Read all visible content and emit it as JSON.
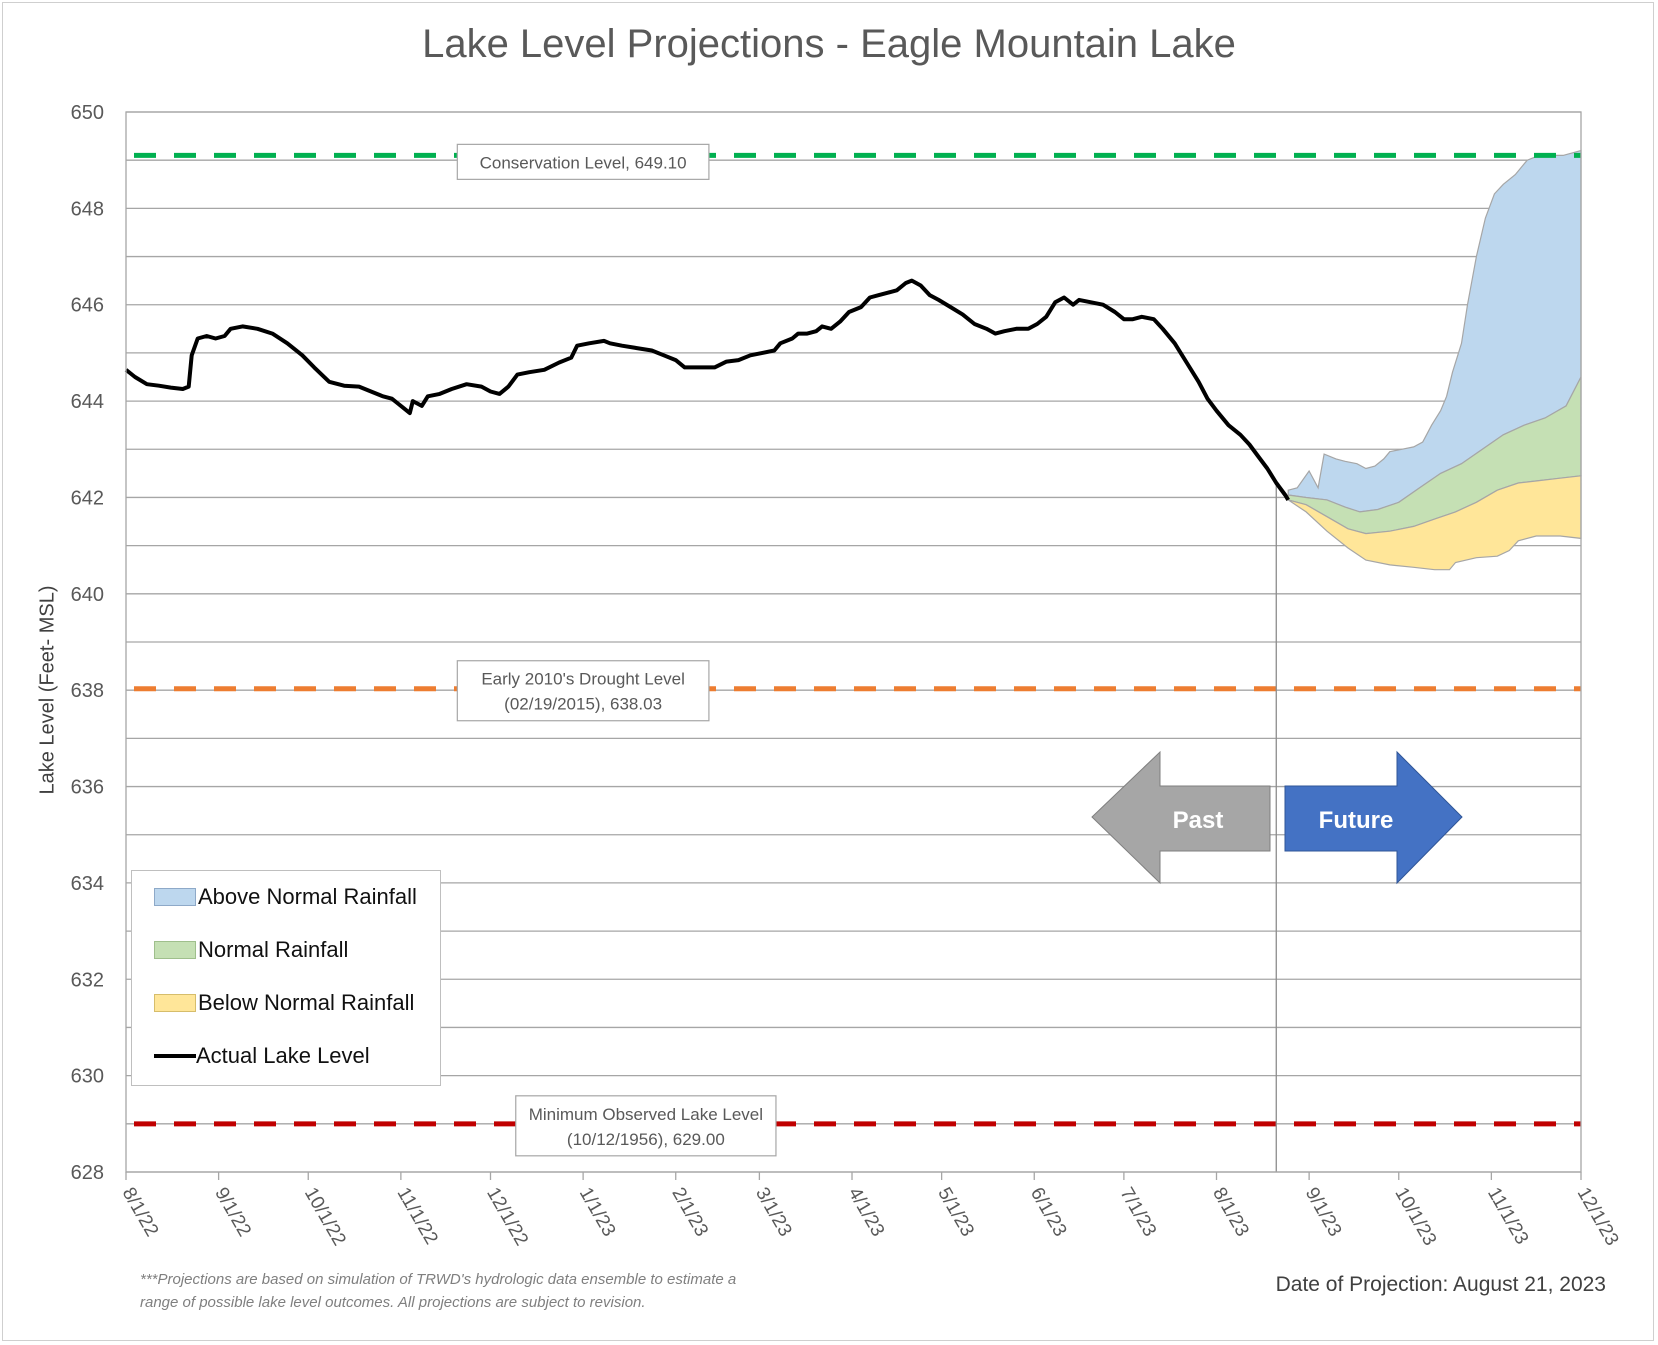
{
  "chart_data": {
    "type": "area",
    "title": "Lake Level Projections - Eagle Mountain Lake",
    "ylabel": "Lake Level (Feet- MSL)",
    "xlabel": "",
    "ylim": [
      628,
      650
    ],
    "y_ticks": [
      "628",
      "630",
      "632",
      "634",
      "636",
      "638",
      "640",
      "642",
      "644",
      "646",
      "648",
      "650"
    ],
    "x_range": [
      "2022-08-01",
      "2023-12-01"
    ],
    "x_ticks": [
      {
        "label": "8/1/22",
        "date": "2022-08-01"
      },
      {
        "label": "9/1/22",
        "date": "2022-09-01"
      },
      {
        "label": "10/1/22",
        "date": "2022-10-01"
      },
      {
        "label": "11/1/22",
        "date": "2022-11-01"
      },
      {
        "label": "12/1/22",
        "date": "2022-12-01"
      },
      {
        "label": "1/1/23",
        "date": "2023-01-01"
      },
      {
        "label": "2/1/23",
        "date": "2023-02-01"
      },
      {
        "label": "3/1/23",
        "date": "2023-03-01"
      },
      {
        "label": "4/1/23",
        "date": "2023-04-01"
      },
      {
        "label": "5/1/23",
        "date": "2023-05-01"
      },
      {
        "label": "6/1/23",
        "date": "2023-06-01"
      },
      {
        "label": "7/1/23",
        "date": "2023-07-01"
      },
      {
        "label": "8/1/23",
        "date": "2023-08-01"
      },
      {
        "label": "9/1/23",
        "date": "2023-09-01"
      },
      {
        "label": "10/1/23",
        "date": "2023-10-01"
      },
      {
        "label": "11/1/23",
        "date": "2023-11-01"
      },
      {
        "label": "12/1/23",
        "date": "2023-12-01"
      }
    ],
    "grid": true,
    "legend_position": "bottom-left",
    "reference_lines": [
      {
        "value": 649.1,
        "color": "#00b050",
        "label_lines": [
          "Conservation Level, 649.10"
        ],
        "label_date": "2023-01-01"
      },
      {
        "value": 638.03,
        "color": "#ed7d31",
        "label_lines": [
          "Early 2010's Drought Level",
          "(02/19/2015), 638.03"
        ],
        "label_date": "2023-01-01"
      },
      {
        "value": 629.0,
        "color": "#c00000",
        "label_lines": [
          "Minimum Observed Lake Level",
          "(10/12/1956), 629.00"
        ],
        "label_date": "2023-01-22"
      }
    ],
    "projection_date": "2023-08-21",
    "arrows": {
      "past_label": "Past",
      "future_label": "Future",
      "past_color": "#a6a6a6",
      "future_color": "#4472c4"
    },
    "series": [
      {
        "name": "Actual Lake Level",
        "kind": "line",
        "color": "#000000",
        "points": [
          [
            "2022-08-01",
            644.65
          ],
          [
            "2022-08-04",
            644.5
          ],
          [
            "2022-08-08",
            644.35
          ],
          [
            "2022-08-12",
            644.32
          ],
          [
            "2022-08-16",
            644.28
          ],
          [
            "2022-08-20",
            644.25
          ],
          [
            "2022-08-22",
            644.3
          ],
          [
            "2022-08-23",
            644.95
          ],
          [
            "2022-08-25",
            645.3
          ],
          [
            "2022-08-28",
            645.35
          ],
          [
            "2022-08-31",
            645.3
          ],
          [
            "2022-09-03",
            645.35
          ],
          [
            "2022-09-05",
            645.5
          ],
          [
            "2022-09-09",
            645.55
          ],
          [
            "2022-09-14",
            645.5
          ],
          [
            "2022-09-19",
            645.4
          ],
          [
            "2022-09-24",
            645.2
          ],
          [
            "2022-09-29",
            644.95
          ],
          [
            "2022-10-03",
            644.7
          ],
          [
            "2022-10-08",
            644.4
          ],
          [
            "2022-10-13",
            644.32
          ],
          [
            "2022-10-18",
            644.3
          ],
          [
            "2022-10-22",
            644.2
          ],
          [
            "2022-10-26",
            644.1
          ],
          [
            "2022-10-29",
            644.05
          ],
          [
            "2022-10-31",
            643.95
          ],
          [
            "2022-11-02",
            643.85
          ],
          [
            "2022-11-04",
            643.75
          ],
          [
            "2022-11-05",
            644.0
          ],
          [
            "2022-11-08",
            643.9
          ],
          [
            "2022-11-10",
            644.1
          ],
          [
            "2022-11-14",
            644.15
          ],
          [
            "2022-11-18",
            644.25
          ],
          [
            "2022-11-23",
            644.35
          ],
          [
            "2022-11-28",
            644.3
          ],
          [
            "2022-12-01",
            644.2
          ],
          [
            "2022-12-04",
            644.15
          ],
          [
            "2022-12-07",
            644.3
          ],
          [
            "2022-12-10",
            644.55
          ],
          [
            "2022-12-14",
            644.6
          ],
          [
            "2022-12-19",
            644.65
          ],
          [
            "2022-12-24",
            644.8
          ],
          [
            "2022-12-28",
            644.9
          ],
          [
            "2022-12-30",
            645.15
          ],
          [
            "2023-01-03",
            645.2
          ],
          [
            "2023-01-08",
            645.25
          ],
          [
            "2023-01-10",
            645.2
          ],
          [
            "2023-01-14",
            645.15
          ],
          [
            "2023-01-19",
            645.1
          ],
          [
            "2023-01-24",
            645.05
          ],
          [
            "2023-01-28",
            644.95
          ],
          [
            "2023-02-01",
            644.85
          ],
          [
            "2023-02-04",
            644.7
          ],
          [
            "2023-02-08",
            644.7
          ],
          [
            "2023-02-14",
            644.7
          ],
          [
            "2023-02-18",
            644.82
          ],
          [
            "2023-02-22",
            644.85
          ],
          [
            "2023-02-26",
            644.95
          ],
          [
            "2023-03-02",
            645.0
          ],
          [
            "2023-03-06",
            645.05
          ],
          [
            "2023-03-08",
            645.2
          ],
          [
            "2023-03-12",
            645.3
          ],
          [
            "2023-03-14",
            645.4
          ],
          [
            "2023-03-17",
            645.4
          ],
          [
            "2023-03-20",
            645.45
          ],
          [
            "2023-03-22",
            645.55
          ],
          [
            "2023-03-25",
            645.5
          ],
          [
            "2023-03-28",
            645.65
          ],
          [
            "2023-03-31",
            645.85
          ],
          [
            "2023-04-04",
            645.95
          ],
          [
            "2023-04-07",
            646.15
          ],
          [
            "2023-04-10",
            646.2
          ],
          [
            "2023-04-13",
            646.25
          ],
          [
            "2023-04-16",
            646.3
          ],
          [
            "2023-04-19",
            646.45
          ],
          [
            "2023-04-21",
            646.5
          ],
          [
            "2023-04-24",
            646.4
          ],
          [
            "2023-04-27",
            646.2
          ],
          [
            "2023-04-30",
            646.1
          ],
          [
            "2023-05-04",
            645.95
          ],
          [
            "2023-05-08",
            645.8
          ],
          [
            "2023-05-12",
            645.6
          ],
          [
            "2023-05-16",
            645.5
          ],
          [
            "2023-05-19",
            645.4
          ],
          [
            "2023-05-22",
            645.45
          ],
          [
            "2023-05-26",
            645.5
          ],
          [
            "2023-05-30",
            645.5
          ],
          [
            "2023-06-02",
            645.6
          ],
          [
            "2023-06-05",
            645.75
          ],
          [
            "2023-06-08",
            646.05
          ],
          [
            "2023-06-11",
            646.15
          ],
          [
            "2023-06-14",
            646.0
          ],
          [
            "2023-06-16",
            646.1
          ],
          [
            "2023-06-20",
            646.05
          ],
          [
            "2023-06-24",
            646.0
          ],
          [
            "2023-06-28",
            645.85
          ],
          [
            "2023-07-01",
            645.7
          ],
          [
            "2023-07-04",
            645.7
          ],
          [
            "2023-07-07",
            645.75
          ],
          [
            "2023-07-11",
            645.7
          ],
          [
            "2023-07-14",
            645.5
          ],
          [
            "2023-07-18",
            645.2
          ],
          [
            "2023-07-22",
            644.8
          ],
          [
            "2023-07-26",
            644.4
          ],
          [
            "2023-07-29",
            644.05
          ],
          [
            "2023-08-01",
            643.8
          ],
          [
            "2023-08-05",
            643.5
          ],
          [
            "2023-08-09",
            643.3
          ],
          [
            "2023-08-12",
            643.1
          ],
          [
            "2023-08-15",
            642.85
          ],
          [
            "2023-08-18",
            642.6
          ],
          [
            "2023-08-21",
            642.3
          ],
          [
            "2023-08-24",
            642.05
          ],
          [
            "2023-08-25",
            641.95
          ]
        ]
      },
      {
        "name": "Above Normal Rainfall",
        "kind": "area",
        "color": "#bdd7ee",
        "upper": [
          [
            "2023-08-25",
            642.15
          ],
          [
            "2023-08-28",
            642.2
          ],
          [
            "2023-09-01",
            642.55
          ],
          [
            "2023-09-04",
            642.2
          ],
          [
            "2023-09-06",
            642.9
          ],
          [
            "2023-09-10",
            642.8
          ],
          [
            "2023-09-13",
            642.75
          ],
          [
            "2023-09-17",
            642.7
          ],
          [
            "2023-09-20",
            642.6
          ],
          [
            "2023-09-23",
            642.65
          ],
          [
            "2023-09-26",
            642.8
          ],
          [
            "2023-09-28",
            642.95
          ],
          [
            "2023-10-02",
            643.0
          ],
          [
            "2023-10-06",
            643.05
          ],
          [
            "2023-10-09",
            643.15
          ],
          [
            "2023-10-12",
            643.5
          ],
          [
            "2023-10-15",
            643.8
          ],
          [
            "2023-10-17",
            644.1
          ],
          [
            "2023-10-19",
            644.6
          ],
          [
            "2023-10-22",
            645.2
          ],
          [
            "2023-10-24",
            646.0
          ],
          [
            "2023-10-27",
            647.0
          ],
          [
            "2023-10-30",
            647.8
          ],
          [
            "2023-11-02",
            648.3
          ],
          [
            "2023-11-05",
            648.5
          ],
          [
            "2023-11-09",
            648.7
          ],
          [
            "2023-11-13",
            649.0
          ],
          [
            "2023-11-17",
            649.1
          ],
          [
            "2023-11-25",
            649.1
          ],
          [
            "2023-12-01",
            649.2
          ]
        ],
        "lower": [
          [
            "2023-08-25",
            642.05
          ],
          [
            "2023-08-31",
            642.0
          ],
          [
            "2023-09-07",
            641.95
          ],
          [
            "2023-09-13",
            641.8
          ],
          [
            "2023-09-18",
            641.7
          ],
          [
            "2023-09-24",
            641.75
          ],
          [
            "2023-10-01",
            641.9
          ],
          [
            "2023-10-08",
            642.2
          ],
          [
            "2023-10-15",
            642.5
          ],
          [
            "2023-10-22",
            642.7
          ],
          [
            "2023-10-29",
            643.0
          ],
          [
            "2023-11-05",
            643.3
          ],
          [
            "2023-11-12",
            643.5
          ],
          [
            "2023-11-19",
            643.65
          ],
          [
            "2023-11-26",
            643.9
          ],
          [
            "2023-12-01",
            644.5
          ]
        ]
      },
      {
        "name": "Normal Rainfall",
        "kind": "area",
        "color": "#c5e0b4",
        "upper": [
          [
            "2023-08-25",
            642.05
          ],
          [
            "2023-08-31",
            642.0
          ],
          [
            "2023-09-07",
            641.95
          ],
          [
            "2023-09-13",
            641.8
          ],
          [
            "2023-09-18",
            641.7
          ],
          [
            "2023-09-24",
            641.75
          ],
          [
            "2023-10-01",
            641.9
          ],
          [
            "2023-10-08",
            642.2
          ],
          [
            "2023-10-15",
            642.5
          ],
          [
            "2023-10-22",
            642.7
          ],
          [
            "2023-10-29",
            643.0
          ],
          [
            "2023-11-05",
            643.3
          ],
          [
            "2023-11-12",
            643.5
          ],
          [
            "2023-11-19",
            643.65
          ],
          [
            "2023-11-26",
            643.9
          ],
          [
            "2023-12-01",
            644.5
          ]
        ],
        "lower": [
          [
            "2023-08-25",
            641.95
          ],
          [
            "2023-08-31",
            641.85
          ],
          [
            "2023-09-07",
            641.6
          ],
          [
            "2023-09-14",
            641.35
          ],
          [
            "2023-09-20",
            641.25
          ],
          [
            "2023-09-28",
            641.3
          ],
          [
            "2023-10-06",
            641.4
          ],
          [
            "2023-10-13",
            641.55
          ],
          [
            "2023-10-20",
            641.7
          ],
          [
            "2023-10-27",
            641.9
          ],
          [
            "2023-11-03",
            642.15
          ],
          [
            "2023-11-10",
            642.3
          ],
          [
            "2023-11-17",
            642.35
          ],
          [
            "2023-11-24",
            642.4
          ],
          [
            "2023-12-01",
            642.45
          ]
        ]
      },
      {
        "name": "Below Normal Rainfall",
        "kind": "area",
        "color": "#ffe699",
        "upper": [
          [
            "2023-08-25",
            641.95
          ],
          [
            "2023-08-31",
            641.85
          ],
          [
            "2023-09-07",
            641.6
          ],
          [
            "2023-09-14",
            641.35
          ],
          [
            "2023-09-20",
            641.25
          ],
          [
            "2023-09-28",
            641.3
          ],
          [
            "2023-10-06",
            641.4
          ],
          [
            "2023-10-13",
            641.55
          ],
          [
            "2023-10-20",
            641.7
          ],
          [
            "2023-10-27",
            641.9
          ],
          [
            "2023-11-03",
            642.15
          ],
          [
            "2023-11-10",
            642.3
          ],
          [
            "2023-11-17",
            642.35
          ],
          [
            "2023-11-24",
            642.4
          ],
          [
            "2023-12-01",
            642.45
          ]
        ],
        "lower": [
          [
            "2023-08-25",
            641.95
          ],
          [
            "2023-08-31",
            641.7
          ],
          [
            "2023-09-07",
            641.3
          ],
          [
            "2023-09-14",
            640.95
          ],
          [
            "2023-09-20",
            640.7
          ],
          [
            "2023-09-28",
            640.6
          ],
          [
            "2023-10-06",
            640.55
          ],
          [
            "2023-10-13",
            640.5
          ],
          [
            "2023-10-18",
            640.5
          ],
          [
            "2023-10-20",
            640.65
          ],
          [
            "2023-10-27",
            640.75
          ],
          [
            "2023-11-03",
            640.78
          ],
          [
            "2023-11-07",
            640.9
          ],
          [
            "2023-11-10",
            641.1
          ],
          [
            "2023-11-16",
            641.2
          ],
          [
            "2023-11-24",
            641.2
          ],
          [
            "2023-12-01",
            641.15
          ]
        ]
      }
    ]
  },
  "legend": {
    "items": [
      {
        "label": "Above Normal Rainfall",
        "color": "#bdd7ee",
        "border": "#8ea9c8"
      },
      {
        "label": "Normal Rainfall",
        "color": "#c5e0b4",
        "border": "#9fbf8c"
      },
      {
        "label": "Below Normal Rainfall",
        "color": "#ffe699",
        "border": "#d6bd6b"
      },
      {
        "label": "Actual Lake Level",
        "color": "#000000"
      }
    ]
  },
  "footnote": {
    "line1": "***Projections are based on simulation of TRWD's hydrologic data ensemble to estimate a",
    "line2": "range of possible lake level outcomes.  All projections are subject to revision."
  },
  "projection_date_label": "Date of Projection: August 21, 2023"
}
